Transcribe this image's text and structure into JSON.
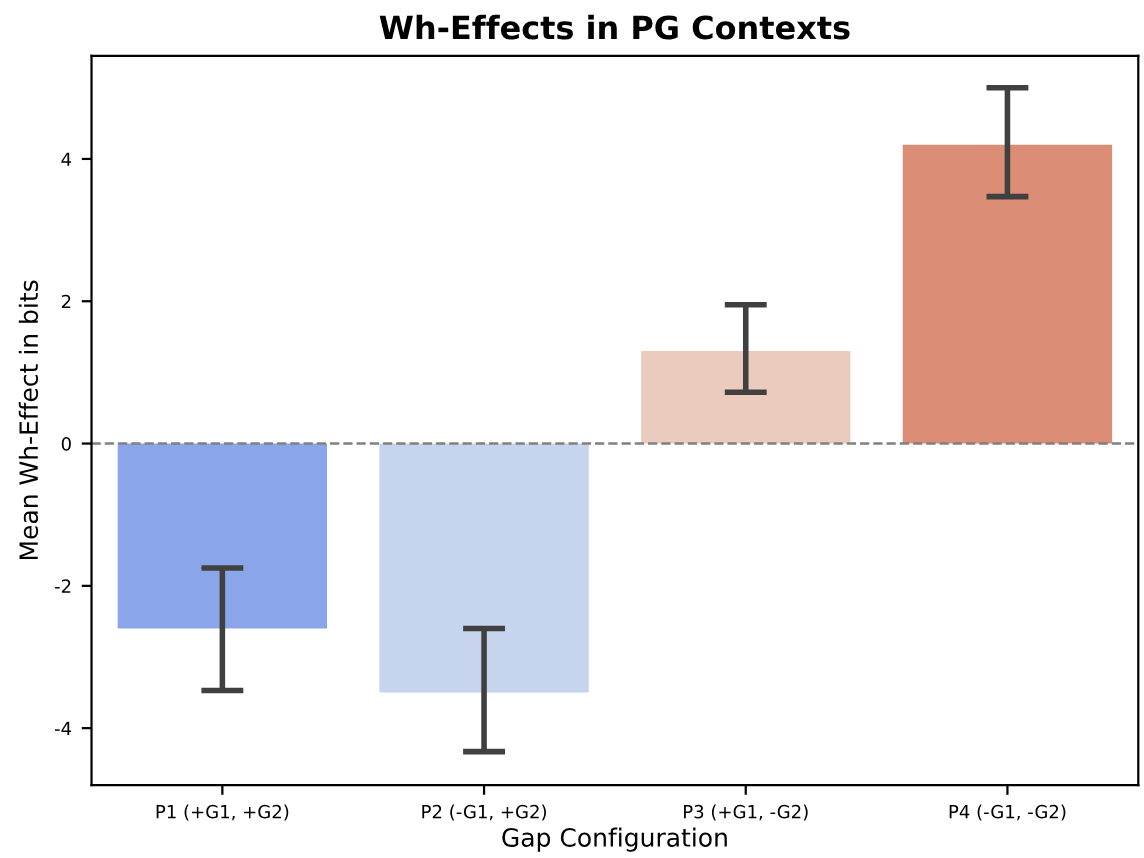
{
  "chart_data": {
    "type": "bar",
    "title": "Wh-Effects in PG Contexts",
    "xlabel": "Gap Configuration",
    "ylabel": "Mean Wh-Effect in bits",
    "categories": [
      "P1 (+G1, +G2)",
      "P2 (-G1, +G2)",
      "P3 (+G1, -G2)",
      "P4 (-G1, -G2)"
    ],
    "values": [
      -2.6,
      -3.5,
      1.3,
      4.2
    ],
    "colors": [
      "#8aa6e8",
      "#c6d4ee",
      "#eacbbd",
      "#dc8d75"
    ],
    "errors": [
      [
        -3.47,
        -1.75
      ],
      [
        -4.33,
        -2.6
      ],
      [
        0.72,
        1.95
      ],
      [
        3.47,
        5.0
      ]
    ],
    "ylim": [
      -4.8,
      5.45
    ],
    "yticks": [
      -4,
      -2,
      0,
      2,
      4
    ],
    "ref_lines": [
      {
        "axis": "y",
        "value": 0,
        "color": "#808080",
        "line_style": "dashed"
      }
    ],
    "grid": false
  }
}
